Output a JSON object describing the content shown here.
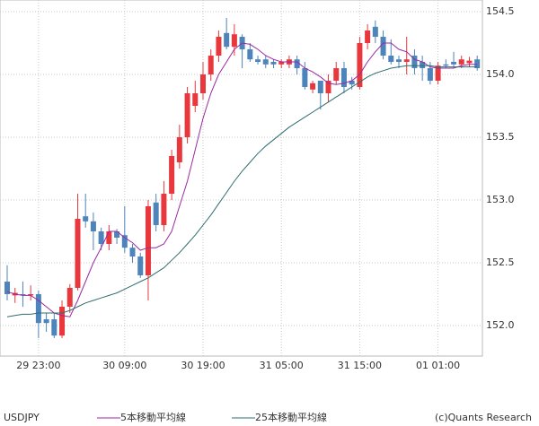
{
  "chart_data": {
    "type": "candlestick",
    "categories": [
      null,
      null,
      null,
      null,
      "29 23:00",
      null,
      null,
      null,
      null,
      null,
      null,
      null,
      null,
      null,
      null,
      "30 09:00",
      null,
      null,
      null,
      null,
      null,
      null,
      null,
      null,
      null,
      "30 19:00",
      null,
      null,
      null,
      null,
      null,
      null,
      null,
      null,
      null,
      "31 05:00",
      null,
      null,
      null,
      null,
      null,
      null,
      null,
      null,
      null,
      "31 15:00",
      null,
      null,
      null,
      null,
      null,
      null,
      null,
      null,
      null,
      "01 01:00",
      null,
      null,
      null,
      null,
      null
    ],
    "open": [
      152.35,
      152.24,
      152.25,
      152.24,
      152.25,
      152.05,
      152.05,
      151.92,
      152.15,
      152.3,
      152.87,
      152.83,
      152.75,
      152.65,
      152.75,
      152.72,
      152.62,
      152.55,
      152.4,
      152.98,
      152.8,
      153.05,
      153.3,
      153.5,
      153.75,
      153.85,
      154.0,
      154.15,
      154.33,
      154.22,
      154.3,
      154.2,
      154.12,
      154.12,
      154.1,
      154.08,
      154.08,
      154.12,
      154.05,
      153.88,
      153.95,
      153.85,
      153.95,
      154.05,
      153.95,
      153.9,
      154.25,
      154.38,
      154.3,
      154.15,
      154.12,
      154.1,
      154.15,
      154.1,
      154.05,
      153.95,
      154.08,
      154.1,
      154.08,
      154.09,
      154.12
    ],
    "high": [
      152.48,
      152.3,
      152.35,
      152.32,
      152.28,
      152.1,
      152.1,
      152.2,
      152.33,
      153.05,
      153.05,
      152.9,
      152.78,
      152.8,
      152.77,
      152.95,
      152.65,
      152.58,
      153.0,
      153.05,
      153.15,
      153.4,
      153.6,
      153.9,
      153.95,
      154.1,
      154.2,
      154.35,
      154.45,
      154.4,
      154.32,
      154.25,
      154.15,
      154.15,
      154.12,
      154.12,
      154.15,
      154.15,
      154.1,
      153.95,
      153.95,
      154.0,
      154.1,
      154.1,
      153.98,
      154.3,
      154.4,
      154.43,
      154.35,
      154.28,
      154.15,
      154.3,
      154.2,
      154.15,
      154.1,
      154.1,
      154.12,
      154.18,
      154.15,
      154.14,
      154.15
    ],
    "low": [
      152.2,
      152.18,
      152.15,
      152.2,
      151.9,
      151.95,
      151.9,
      151.9,
      152.1,
      152.28,
      152.78,
      152.6,
      152.6,
      152.6,
      152.65,
      152.58,
      152.5,
      152.38,
      152.2,
      152.75,
      152.75,
      153.0,
      153.25,
      153.45,
      153.7,
      153.8,
      153.95,
      154.1,
      154.2,
      154.15,
      154.05,
      154.1,
      154.08,
      154.05,
      154.05,
      154.05,
      154.05,
      154.0,
      153.88,
      153.85,
      153.72,
      153.78,
      153.92,
      153.85,
      153.88,
      153.88,
      154.2,
      154.25,
      154.12,
      154.08,
      154.05,
      154.0,
      154.0,
      153.95,
      153.92,
      153.92,
      154.05,
      154.05,
      154.05,
      154.06,
      154.03
    ],
    "close": [
      152.25,
      152.26,
      152.24,
      152.25,
      152.02,
      152.02,
      151.92,
      152.15,
      152.3,
      152.85,
      152.83,
      152.75,
      152.65,
      152.75,
      152.7,
      152.62,
      152.55,
      152.4,
      152.95,
      152.8,
      153.05,
      153.35,
      153.5,
      153.85,
      153.85,
      154.0,
      154.15,
      154.3,
      154.22,
      154.32,
      154.2,
      154.12,
      154.1,
      154.08,
      154.08,
      154.1,
      154.12,
      154.05,
      153.9,
      153.93,
      153.85,
      153.95,
      154.05,
      153.9,
      153.92,
      154.25,
      154.35,
      154.3,
      154.15,
      154.1,
      154.1,
      154.12,
      154.05,
      154.05,
      153.95,
      154.07,
      154.07,
      154.08,
      154.12,
      154.11,
      154.05
    ],
    "up_color": "#e8383d",
    "down_color": "#4d84bc",
    "series": [
      {
        "name": "5本移動平均線",
        "color": "#9b2aa0",
        "values": [
          152.27,
          152.25,
          152.24,
          152.24,
          152.2,
          152.15,
          152.1,
          152.08,
          152.07,
          152.2,
          152.35,
          152.5,
          152.62,
          152.75,
          152.75,
          152.7,
          152.66,
          152.6,
          152.62,
          152.62,
          152.65,
          152.75,
          152.95,
          153.15,
          153.4,
          153.65,
          153.85,
          154.0,
          154.1,
          154.2,
          154.25,
          154.24,
          154.2,
          154.15,
          154.12,
          154.1,
          154.1,
          154.1,
          154.05,
          154.02,
          153.98,
          153.93,
          153.92,
          153.93,
          153.95,
          154.0,
          154.1,
          154.18,
          154.25,
          154.25,
          154.2,
          154.18,
          154.12,
          154.1,
          154.06,
          154.05,
          154.05,
          154.05,
          154.07,
          154.08,
          154.08
        ]
      },
      {
        "name": "25本移動平均線",
        "color": "#2f6e6e",
        "values": [
          152.07,
          152.08,
          152.09,
          152.09,
          152.1,
          152.1,
          152.1,
          152.1,
          152.12,
          152.15,
          152.18,
          152.2,
          152.22,
          152.24,
          152.26,
          152.29,
          152.32,
          152.35,
          152.38,
          152.42,
          152.46,
          152.52,
          152.58,
          152.65,
          152.72,
          152.8,
          152.88,
          152.97,
          153.06,
          153.15,
          153.23,
          153.3,
          153.37,
          153.43,
          153.48,
          153.53,
          153.58,
          153.62,
          153.66,
          153.7,
          153.74,
          153.78,
          153.82,
          153.86,
          153.9,
          153.94,
          153.98,
          154.01,
          154.03,
          154.05,
          154.06,
          154.07,
          154.07,
          154.07,
          154.07,
          154.06,
          154.06,
          154.06,
          154.06,
          154.06,
          154.06
        ]
      }
    ],
    "ylim": [
      151.757,
      154.593
    ],
    "yticks": [
      {
        "value": 152,
        "label": "152.0"
      },
      152.5,
      {
        "value": 153,
        "label": "153.0"
      },
      153.5,
      {
        "value": 154,
        "label": "154.0"
      },
      154.5
    ],
    "grid": true,
    "symbol": "USDJPY",
    "credit": "(c)Quants Research"
  }
}
